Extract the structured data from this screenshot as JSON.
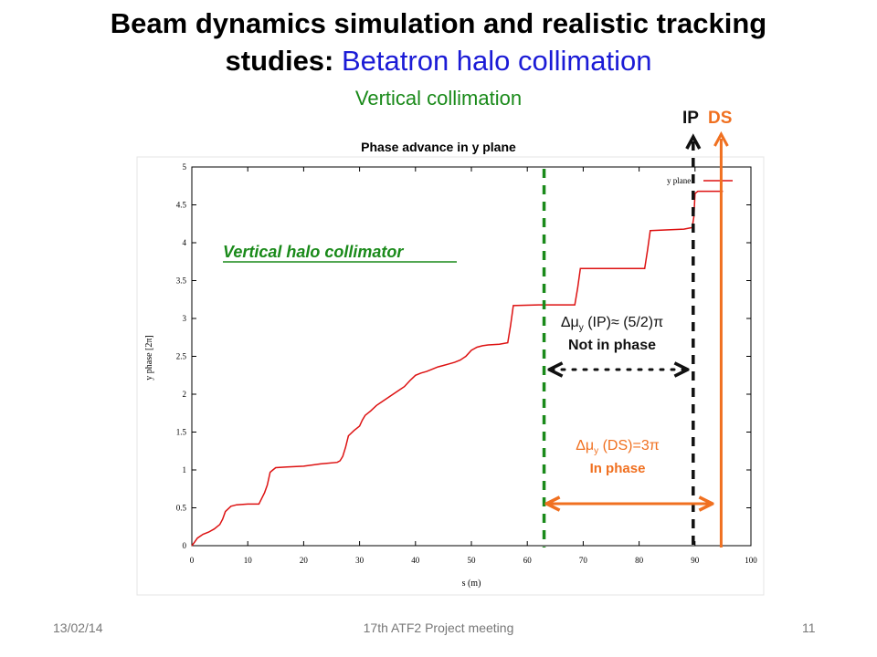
{
  "slide": {
    "title_line1": "Beam dynamics simulation and realistic tracking",
    "title_line2_black": "studies:",
    "title_line2_blue": "Betatron halo collimation",
    "subtitle": "Vertical collimation",
    "footer_date": "13/02/14",
    "footer_event": "17th ATF2 Project meeting",
    "footer_page": "11"
  },
  "labels": {
    "ip": "IP",
    "ds": "DS",
    "collimator": "Vertical halo collimator",
    "delta_ip_pre": "Δμ",
    "delta_ip_sub": "y",
    "delta_ip_post": " (IP)≈ (5/2)π",
    "not_in_phase": "Not in phase",
    "delta_ds_pre": "Δμ",
    "delta_ds_sub": "y",
    "delta_ds_post": " (DS)=3π",
    "in_phase": "In phase"
  },
  "colors": {
    "curve": "#dd1111",
    "collimator": "#1a8a1a",
    "ip": "#111111",
    "ds": "#f07020",
    "title_blue": "#1b1bd6"
  },
  "chart_data": {
    "type": "line",
    "title": "Phase advance in y plane",
    "xlabel": "s (m)",
    "ylabel": "y phase   [2π]",
    "xlim": [
      0,
      100
    ],
    "ylim": [
      0,
      5
    ],
    "xticks": [
      "0",
      "10",
      "20",
      "30",
      "40",
      "50",
      "60",
      "70",
      "80",
      "90",
      "100"
    ],
    "yticks": [
      "0",
      "0.5",
      "1",
      "1.5",
      "2",
      "2.5",
      "3",
      "3.5",
      "4",
      "4.5",
      "5"
    ],
    "legend": {
      "label": "y plane",
      "position": "top-right"
    },
    "series": [
      {
        "name": "y plane",
        "x": [
          0,
          0.5,
          1,
          2,
          3,
          4,
          5,
          5.5,
          6,
          7,
          8,
          10,
          12,
          13,
          13.5,
          14,
          14.5,
          15,
          17,
          20,
          23,
          26,
          26.5,
          27,
          27.5,
          28,
          29,
          30,
          30.5,
          31,
          32,
          33,
          34,
          35,
          36,
          37,
          38,
          39,
          40,
          41,
          42,
          43,
          44,
          45,
          46,
          47,
          48,
          49,
          50,
          51,
          52,
          53,
          55,
          56.5,
          57,
          57.5,
          62,
          68.5,
          69,
          69.5,
          75,
          81,
          81.5,
          82,
          88,
          89.5,
          89.8,
          90,
          90.5,
          91,
          95
        ],
        "y": [
          0,
          0.05,
          0.1,
          0.15,
          0.18,
          0.22,
          0.28,
          0.35,
          0.45,
          0.52,
          0.54,
          0.55,
          0.55,
          0.7,
          0.8,
          0.97,
          1.0,
          1.03,
          1.04,
          1.05,
          1.08,
          1.1,
          1.12,
          1.18,
          1.3,
          1.45,
          1.52,
          1.58,
          1.66,
          1.72,
          1.78,
          1.85,
          1.9,
          1.95,
          2.0,
          2.05,
          2.1,
          2.18,
          2.25,
          2.28,
          2.3,
          2.33,
          2.36,
          2.38,
          2.4,
          2.42,
          2.45,
          2.5,
          2.58,
          2.62,
          2.64,
          2.65,
          2.66,
          2.68,
          2.9,
          3.17,
          3.18,
          3.18,
          3.4,
          3.66,
          3.66,
          3.66,
          3.9,
          4.16,
          4.18,
          4.2,
          4.35,
          4.65,
          4.68,
          4.68,
          4.68
        ]
      }
    ],
    "vlines": [
      {
        "name": "Vertical halo collimator",
        "x": 63
      },
      {
        "name": "IP",
        "x": 90
      },
      {
        "name": "DS",
        "x": 95
      }
    ]
  }
}
